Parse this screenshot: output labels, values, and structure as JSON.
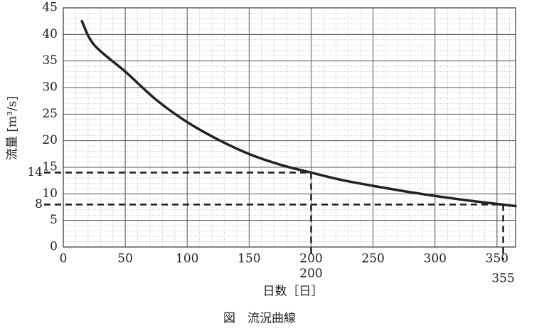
{
  "chart_data": {
    "type": "line",
    "x_label": "日数［日］",
    "y_label": "流量 [m³/s]",
    "caption": "図　流況曲線",
    "xlim": [
      0,
      365
    ],
    "ylim": [
      0,
      45
    ],
    "xticks": [
      0,
      50,
      100,
      150,
      200,
      250,
      300,
      350
    ],
    "yticks": [
      0,
      5,
      10,
      15,
      20,
      25,
      30,
      35,
      40,
      45
    ],
    "grid": true,
    "x_minor_step": 10,
    "y_minor_step": 1,
    "series": [
      {
        "color": "#222222",
        "x": [
          15,
          25,
          50,
          75,
          100,
          125,
          150,
          175,
          200,
          225,
          250,
          275,
          300,
          325,
          350,
          365
        ],
        "y": [
          42.5,
          38,
          33,
          27.7,
          23.5,
          20.2,
          17.5,
          15.5,
          14,
          12.6,
          11.5,
          10.5,
          9.6,
          8.8,
          8.1,
          7.7
        ]
      }
    ],
    "reference_lines": [
      {
        "x": 200,
        "y": 14
      },
      {
        "x": 355,
        "y": 8
      }
    ]
  }
}
